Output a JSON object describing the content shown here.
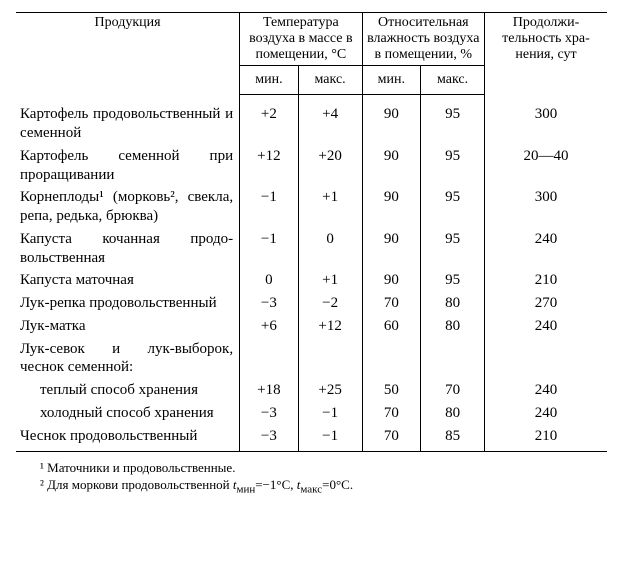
{
  "header": {
    "product": "Продукция",
    "temp_group": "Температура воздуха в мас­се в помеще­нии, °С",
    "hum_group": "Относитель­ная влажность воздуха в по­мещении, %",
    "duration": "Продолжи­тельность хра­нения, сут",
    "min": "мин.",
    "max": "макс."
  },
  "rows": [
    {
      "name": "Картофель продовольствен­ный и семенной",
      "tmin": "+2",
      "tmax": "+4",
      "hmin": "90",
      "hmax": "95",
      "dur": "300"
    },
    {
      "name": "Картофель семенной при проращивании",
      "tmin": "+12",
      "tmax": "+20",
      "hmin": "90",
      "hmax": "95",
      "dur": "20—40"
    },
    {
      "name": "Корнеплоды¹ (морковь², свекла, репа, редька, брюква)",
      "tmin": "−1",
      "tmax": "+1",
      "hmin": "90",
      "hmax": "95",
      "dur": "300"
    },
    {
      "name": "Капуста кочанная продо­вольственная",
      "tmin": "−1",
      "tmax": "0",
      "hmin": "90",
      "hmax": "95",
      "dur": "240"
    },
    {
      "name": "Капуста маточная",
      "tmin": "0",
      "tmax": "+1",
      "hmin": "90",
      "hmax": "95",
      "dur": "210"
    },
    {
      "name": "Лук-репка продовольствен­ный",
      "tmin": "−3",
      "tmax": "−2",
      "hmin": "70",
      "hmax": "80",
      "dur": "270"
    },
    {
      "name": "Лук-матка",
      "tmin": "+6",
      "tmax": "+12",
      "hmin": "60",
      "hmax": "80",
      "dur": "240"
    },
    {
      "name": "Лук-севок и лук-выборок, чеснок семенной:",
      "tmin": "",
      "tmax": "",
      "hmin": "",
      "hmax": "",
      "dur": ""
    },
    {
      "name": "теплый способ хране­ния",
      "indent": true,
      "tmin": "+18",
      "tmax": "+25",
      "hmin": "50",
      "hmax": "70",
      "dur": "240"
    },
    {
      "name": "холодный способ хране­ния",
      "indent": true,
      "tmin": "−3",
      "tmax": "−1",
      "hmin": "70",
      "hmax": "80",
      "dur": "240"
    },
    {
      "name": "Чеснок продовольствен­ный",
      "tmin": "−3",
      "tmax": "−1",
      "hmin": "70",
      "hmax": "85",
      "dur": "210"
    }
  ],
  "footnotes": {
    "f1": "¹ Маточники и продовольственные.",
    "f2_a": "² Для моркови продовольственной ",
    "f2_b": "=−1°С, ",
    "f2_c": "=0°С."
  },
  "symbols": {
    "t": "t",
    "min": "мин",
    "max": "макс"
  },
  "cols": {
    "name": 210,
    "tmin": 55,
    "tmax": 60,
    "hmin": 55,
    "hmax": 60,
    "dur": 115
  }
}
